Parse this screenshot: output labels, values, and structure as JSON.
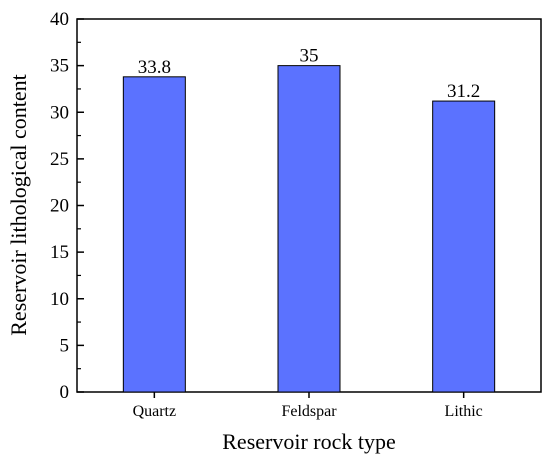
{
  "chart_data": {
    "type": "bar",
    "categories": [
      "Quartz",
      "Feldspar",
      "Lithic"
    ],
    "values": [
      33.8,
      35,
      31.2
    ],
    "data_labels": [
      "33.8",
      "35",
      "31.2"
    ],
    "title": "",
    "xlabel": "Reservoir rock type",
    "ylabel": "Reservoir lithological content",
    "ylim": [
      0,
      40
    ],
    "yticks": [
      0,
      5,
      10,
      15,
      20,
      25,
      30,
      35,
      40
    ],
    "bar_color": "#5b72ff",
    "grid": false
  }
}
